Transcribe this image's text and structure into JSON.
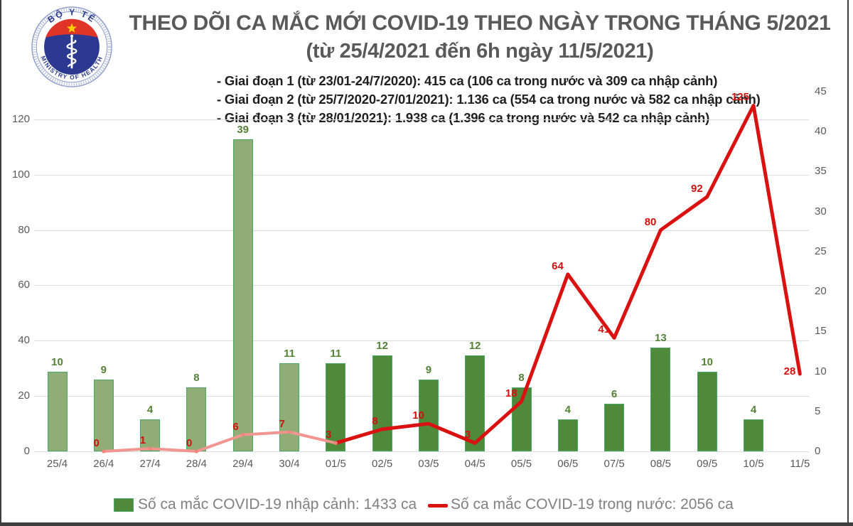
{
  "logo": {
    "top_text": "BỘ Y TẾ",
    "bottom_text": "MINISTRY OF HEALTH"
  },
  "header": {
    "title": "THEO DÕI CA MẮC MỚI COVID-19 THEO NGÀY TRONG THÁNG 5/2021",
    "subtitle": "(từ 25/4/2021 đến 6h ngày 11/5/2021)"
  },
  "phases": [
    "- Giai đoạn 1 (từ 23/01-24/7/2020): 415 ca (106 ca trong nước và 309 ca nhập cảnh)",
    "- Giai đoạn 2 (từ 25/7/2020-27/01/2021): 1.136 ca (554 ca trong nước và 582 ca nhập cảnh)",
    "- Giai đoạn 3 (từ 28/01/2021): 1.938 ca (1.396 ca trong nước và 542 ca nhập cảnh)"
  ],
  "chart_data": {
    "type": "bar",
    "combo": "bar+line",
    "title": "THEO DÕI CA MẮC MỚI COVID-19 THEO NGÀY TRONG THÁNG 5/2021",
    "categories": [
      "25/4",
      "26/4",
      "27/4",
      "28/4",
      "29/4",
      "30/4",
      "01/5",
      "02/5",
      "03/5",
      "04/5",
      "05/5",
      "06/5",
      "07/5",
      "08/5",
      "09/5",
      "10/5",
      "11/5"
    ],
    "series": [
      {
        "name": "Số ca mắc COVID-19 nhập cảnh",
        "type": "bar",
        "axis": "right",
        "values": [
          10,
          9,
          4,
          8,
          39,
          11,
          11,
          12,
          9,
          12,
          8,
          4,
          6,
          13,
          10,
          4,
          null
        ]
      },
      {
        "name": "Số ca mắc COVID-19 trong nước",
        "type": "line",
        "axis": "left",
        "values": [
          null,
          0,
          1,
          0,
          6,
          7,
          3,
          8,
          10,
          3,
          18,
          64,
          41,
          80,
          92,
          125,
          28
        ]
      }
    ],
    "left_axis": {
      "ticks": [
        0,
        20,
        40,
        60,
        80,
        100,
        120
      ],
      "max": 130
    },
    "right_axis": {
      "ticks": [
        0,
        5,
        10,
        15,
        20,
        25,
        30,
        35,
        40,
        45
      ],
      "max": 45
    },
    "grid": "horizontal",
    "legend_position": "bottom",
    "style": {
      "bar_fill_phase_early": "#8fad74",
      "bar_fill": "#4e8a3a",
      "bar_stroke": "#4aa765",
      "early_bar_count": 6,
      "line_color": "#d91111",
      "line_color_faded": "#f29490",
      "faded_until_index": 6,
      "bar_label_color": "#538135",
      "line_label_color": "#cf1110",
      "axis_label_color": "#595959",
      "grid_color": "#dcdcdc"
    }
  },
  "legend": {
    "bar_label": "Số ca mắc COVID-19 nhập cảnh: 1433 ca",
    "line_label": "Số ca mắc COVID-19 trong nước: 2056 ca"
  }
}
